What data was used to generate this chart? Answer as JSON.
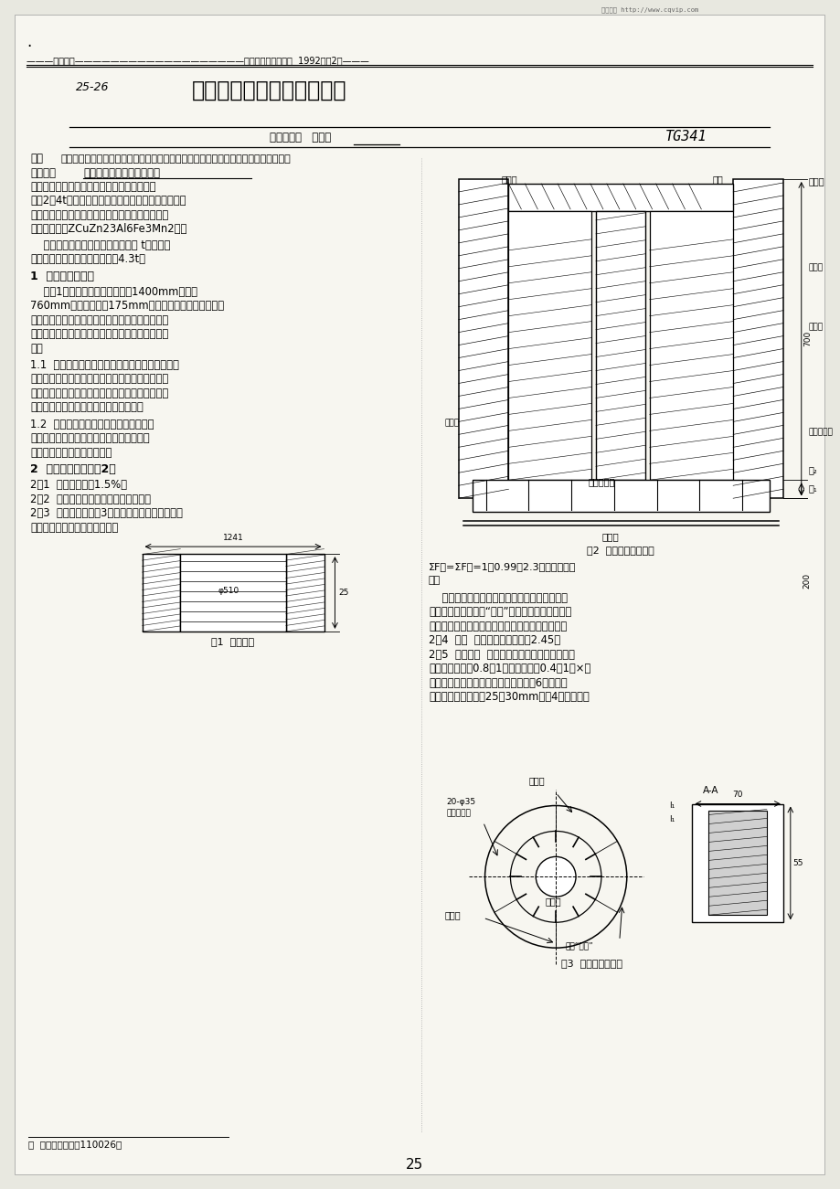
{
  "background_color": "#e8e8e0",
  "page_color": "#f0efe8",
  "header_line": "———生产技术———————————————————特种铸造及有色合金  1992年第2期———",
  "watermark": "维普资讯 http://www.cqvip.com",
  "subtitle_left": "25-26",
  "title": "大型逸螺母的铸造工艺特点",
  "author_org": "沈阳铸造厂",
  "author_name": "侯廷秀",
  "code_right": "TG341",
  "abstract_label": "摘要",
  "abstract_text": "叙述大型逸螺母铸造工艺设计的原则、燕炼和浇注工艺的特点、废品分析及改进措施。",
  "keyword_label": "关键词：",
  "keywords": "逸螺母，铸造工艺，铝黄逸",
  "footnote": "＊  侯廷秀，沈阳（110026）",
  "page_number_bottom": "25",
  "fig1_label": "图1  逸螺母图",
  "fig2_label": "图2  逸螺母铸造工艺图",
  "fig2_formula": "ΣF直=ΣF横=1：0.99：2.3（不计滤网影响）",
  "fig3_label": "图3  浇注系统示意图"
}
